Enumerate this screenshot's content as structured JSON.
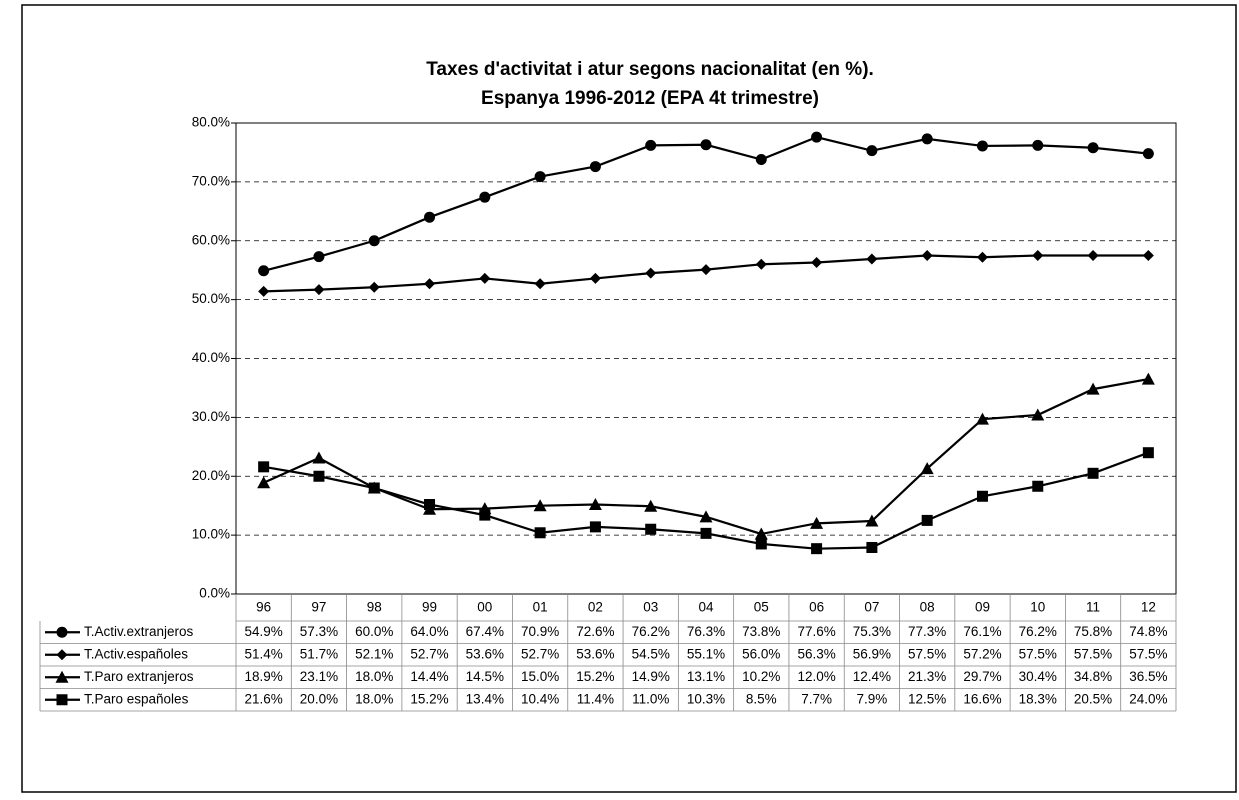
{
  "chart_data": {
    "type": "line",
    "title": [
      "Taxes d'activitat i atur segons nacionalitat (en %).",
      "Espanya 1996-2012 (EPA 4t trimestre)"
    ],
    "categories": [
      "96",
      "97",
      "98",
      "99",
      "00",
      "01",
      "02",
      "03",
      "04",
      "05",
      "06",
      "07",
      "08",
      "09",
      "10",
      "11",
      "12"
    ],
    "ylim": [
      0,
      80
    ],
    "yticks": [
      {
        "value": 0,
        "label": "0.0%"
      },
      {
        "value": 10,
        "label": "10.0%"
      },
      {
        "value": 20,
        "label": "20.0%"
      },
      {
        "value": 30,
        "label": "30.0%"
      },
      {
        "value": 40,
        "label": "40.0%"
      },
      {
        "value": 50,
        "label": "50.0%"
      },
      {
        "value": 60,
        "label": "60.0%"
      },
      {
        "value": 70,
        "label": "70.0%"
      },
      {
        "value": 80,
        "label": "80.0%"
      }
    ],
    "grid": true,
    "series": [
      {
        "name": "T.Activ.extranjeros",
        "color": "#000000",
        "marker": "circle",
        "values": [
          54.9,
          57.3,
          60.0,
          64.0,
          67.4,
          70.9,
          72.6,
          76.2,
          76.3,
          73.8,
          77.6,
          75.3,
          77.3,
          76.1,
          76.2,
          75.8,
          74.8
        ],
        "value_labels": [
          "54.9%",
          "57.3%",
          "60.0%",
          "64.0%",
          "67.4%",
          "70.9%",
          "72.6%",
          "76.2%",
          "76.3%",
          "73.8%",
          "77.6%",
          "75.3%",
          "77.3%",
          "76.1%",
          "76.2%",
          "75.8%",
          "74.8%"
        ]
      },
      {
        "name": "T.Activ.españoles",
        "color": "#000000",
        "marker": "diamond",
        "values": [
          51.4,
          51.7,
          52.1,
          52.7,
          53.6,
          52.7,
          53.6,
          54.5,
          55.1,
          56.0,
          56.3,
          56.9,
          57.5,
          57.2,
          57.5,
          57.5,
          57.5
        ],
        "value_labels": [
          "51.4%",
          "51.7%",
          "52.1%",
          "52.7%",
          "53.6%",
          "52.7%",
          "53.6%",
          "54.5%",
          "55.1%",
          "56.0%",
          "56.3%",
          "56.9%",
          "57.5%",
          "57.2%",
          "57.5%",
          "57.5%",
          "57.5%"
        ]
      },
      {
        "name": "T.Paro extranjeros",
        "color": "#000000",
        "marker": "triangle",
        "values": [
          18.9,
          23.1,
          18.0,
          14.4,
          14.5,
          15.0,
          15.2,
          14.9,
          13.1,
          10.2,
          12.0,
          12.4,
          21.3,
          29.7,
          30.4,
          34.8,
          36.5
        ],
        "value_labels": [
          "18.9%",
          "23.1%",
          "18.0%",
          "14.4%",
          "14.5%",
          "15.0%",
          "15.2%",
          "14.9%",
          "13.1%",
          "10.2%",
          "12.0%",
          "12.4%",
          "21.3%",
          "29.7%",
          "30.4%",
          "34.8%",
          "36.5%"
        ]
      },
      {
        "name": "T.Paro españoles",
        "color": "#000000",
        "marker": "square",
        "values": [
          21.6,
          20.0,
          18.0,
          15.2,
          13.4,
          10.4,
          11.4,
          11.0,
          10.3,
          8.5,
          7.7,
          7.9,
          12.5,
          16.6,
          18.3,
          20.5,
          24.0
        ],
        "value_labels": [
          "21.6%",
          "20.0%",
          "18.0%",
          "15.2%",
          "13.4%",
          "10.4%",
          "11.4%",
          "11.0%",
          "10.3%",
          "8.5%",
          "7.7%",
          "7.9%",
          "12.5%",
          "16.6%",
          "18.3%",
          "20.5%",
          "24.0%"
        ]
      }
    ]
  }
}
